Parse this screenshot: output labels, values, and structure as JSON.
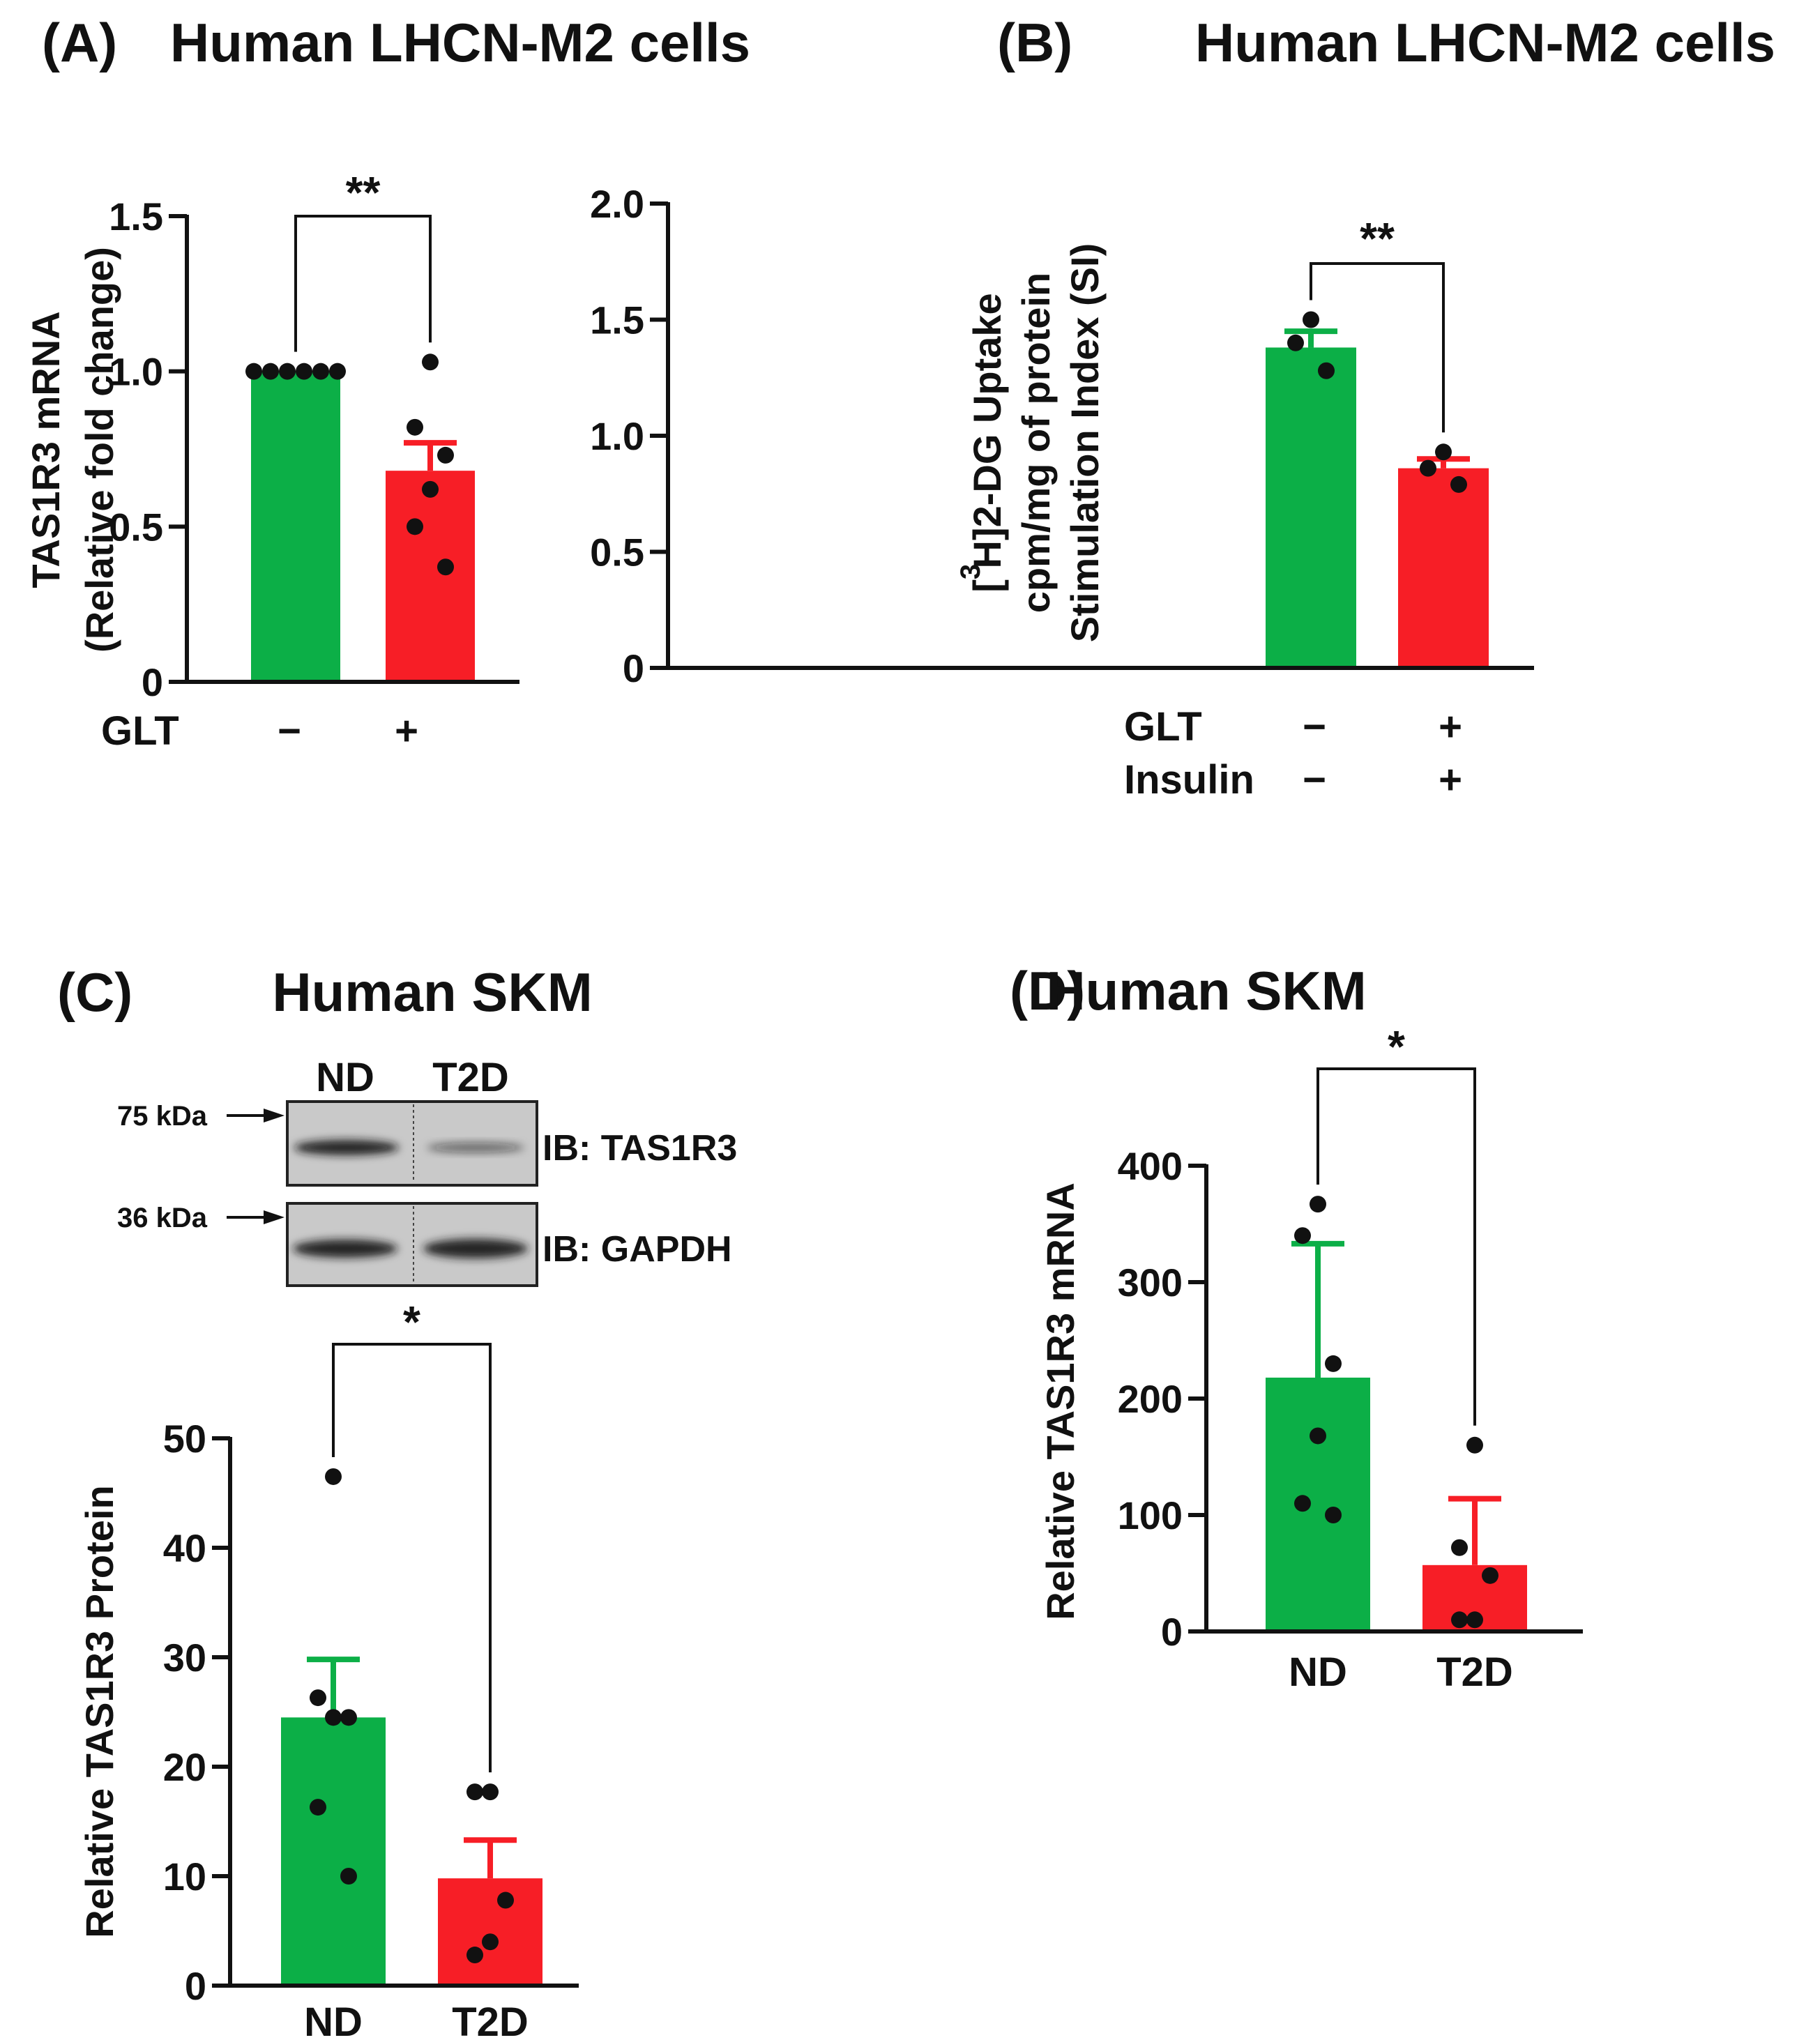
{
  "colors": {
    "nd": "#0caf47",
    "treated": "#f71e26",
    "axis": "#111111",
    "point": "#111111"
  },
  "chart_data": [
    {
      "id": "A",
      "type": "bar",
      "panel_label": "(A)",
      "title": "Human LHCN-M2 cells",
      "ylabel_lines": [
        "TAS1R3 mRNA",
        "(Relative fold change)"
      ],
      "ylim": [
        0,
        1.5
      ],
      "yticks": [
        0,
        0.5,
        1.0,
        1.5
      ],
      "ytick_labels": [
        "0",
        "0.5",
        "1.0",
        "1.5"
      ],
      "condition_rows": [
        {
          "label": "GLT",
          "values": [
            "−",
            "+"
          ]
        }
      ],
      "bars": [
        {
          "mean": 1.0,
          "sem": 0.0,
          "points": [
            1.0,
            1.0,
            1.0,
            1.0,
            1.0,
            1.0
          ],
          "color": "nd"
        },
        {
          "mean": 0.68,
          "sem": 0.09,
          "points": [
            1.03,
            0.82,
            0.73,
            0.62,
            0.5,
            0.37
          ],
          "color": "treated"
        }
      ],
      "significance": "**"
    },
    {
      "id": "B",
      "type": "bar",
      "panel_label": "(B)",
      "title": "Human LHCN-M2 cells",
      "ylabel_lines": [
        "[ H]2-DG Uptake",
        "cpm/mg of protein",
        "Stimulation Index (SI)"
      ],
      "ylabel_superscript": "3",
      "ylim": [
        0,
        2.0
      ],
      "yticks": [
        0,
        0.5,
        1.0,
        1.5,
        2.0
      ],
      "ytick_labels": [
        "0",
        "0.5",
        "1.0",
        "1.5",
        "2.0"
      ],
      "condition_rows": [
        {
          "label": "GLT",
          "values": [
            "−",
            "+"
          ]
        },
        {
          "label": "Insulin",
          "values": [
            "−",
            "+"
          ]
        }
      ],
      "bars": [
        {
          "mean": 1.38,
          "sem": 0.07,
          "points": [
            1.5,
            1.4,
            1.28
          ],
          "color": "nd"
        },
        {
          "mean": 0.86,
          "sem": 0.04,
          "points": [
            0.93,
            0.86,
            0.79
          ],
          "color": "treated"
        }
      ],
      "significance": "**"
    },
    {
      "id": "C",
      "type": "bar",
      "panel_label": "(C)",
      "title": "Human SKM",
      "ylabel_lines": [
        "Relative TAS1R3 Protein"
      ],
      "ylim": [
        0,
        50
      ],
      "yticks": [
        0,
        10,
        20,
        30,
        40,
        50
      ],
      "ytick_labels": [
        "0",
        "10",
        "20",
        "30",
        "40",
        "50"
      ],
      "categories": [
        "ND",
        "T2D"
      ],
      "bars": [
        {
          "mean": 24.5,
          "sem": 5.3,
          "points": [
            46.5,
            26.3,
            24.5,
            24.5,
            16.3,
            10.0
          ],
          "color": "nd"
        },
        {
          "mean": 9.8,
          "sem": 3.5,
          "points": [
            17.7,
            17.7,
            7.8,
            4.0,
            2.8
          ],
          "color": "treated"
        }
      ],
      "significance": "*",
      "blot": {
        "lanes": [
          "ND",
          "T2D"
        ],
        "rows": [
          {
            "marker": "75 kDa",
            "label": "IB: TAS1R3"
          },
          {
            "marker": "36 kDa",
            "label": "IB: GAPDH"
          }
        ]
      }
    },
    {
      "id": "D",
      "type": "bar",
      "panel_label": "(D)",
      "title": "Human SKM",
      "ylabel_lines": [
        "Relative TAS1R3 mRNA"
      ],
      "ylim": [
        0,
        400
      ],
      "yticks": [
        0,
        100,
        200,
        300,
        400
      ],
      "ytick_labels": [
        "0",
        "100",
        "200",
        "300",
        "400"
      ],
      "categories": [
        "ND",
        "T2D"
      ],
      "bars": [
        {
          "mean": 218,
          "sem": 115,
          "points": [
            367,
            340,
            230,
            168,
            110,
            100
          ],
          "color": "nd"
        },
        {
          "mean": 57,
          "sem": 57,
          "points": [
            160,
            72,
            48,
            10,
            10
          ],
          "color": "treated"
        }
      ],
      "significance": "*"
    }
  ]
}
